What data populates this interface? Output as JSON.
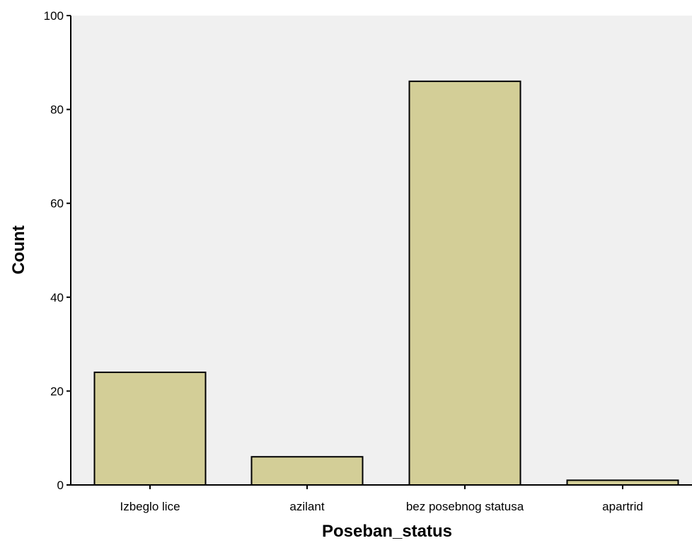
{
  "chart_data": {
    "type": "bar",
    "categories": [
      "Izbeglo lice",
      "azilant",
      "bez posebnog statusa",
      "apartrid"
    ],
    "values": [
      24,
      6,
      86,
      1
    ],
    "xlabel": "Poseban_status",
    "ylabel": "Count",
    "ylim": [
      0,
      100
    ],
    "yticks": [
      0,
      20,
      40,
      60,
      80,
      100
    ],
    "grid": false,
    "legend": "none",
    "colors": {
      "bar_fill": "#d3ce97",
      "bar_stroke": "#000000",
      "plot_background": "#f0f0f0",
      "page_background": "#ffffff"
    }
  }
}
